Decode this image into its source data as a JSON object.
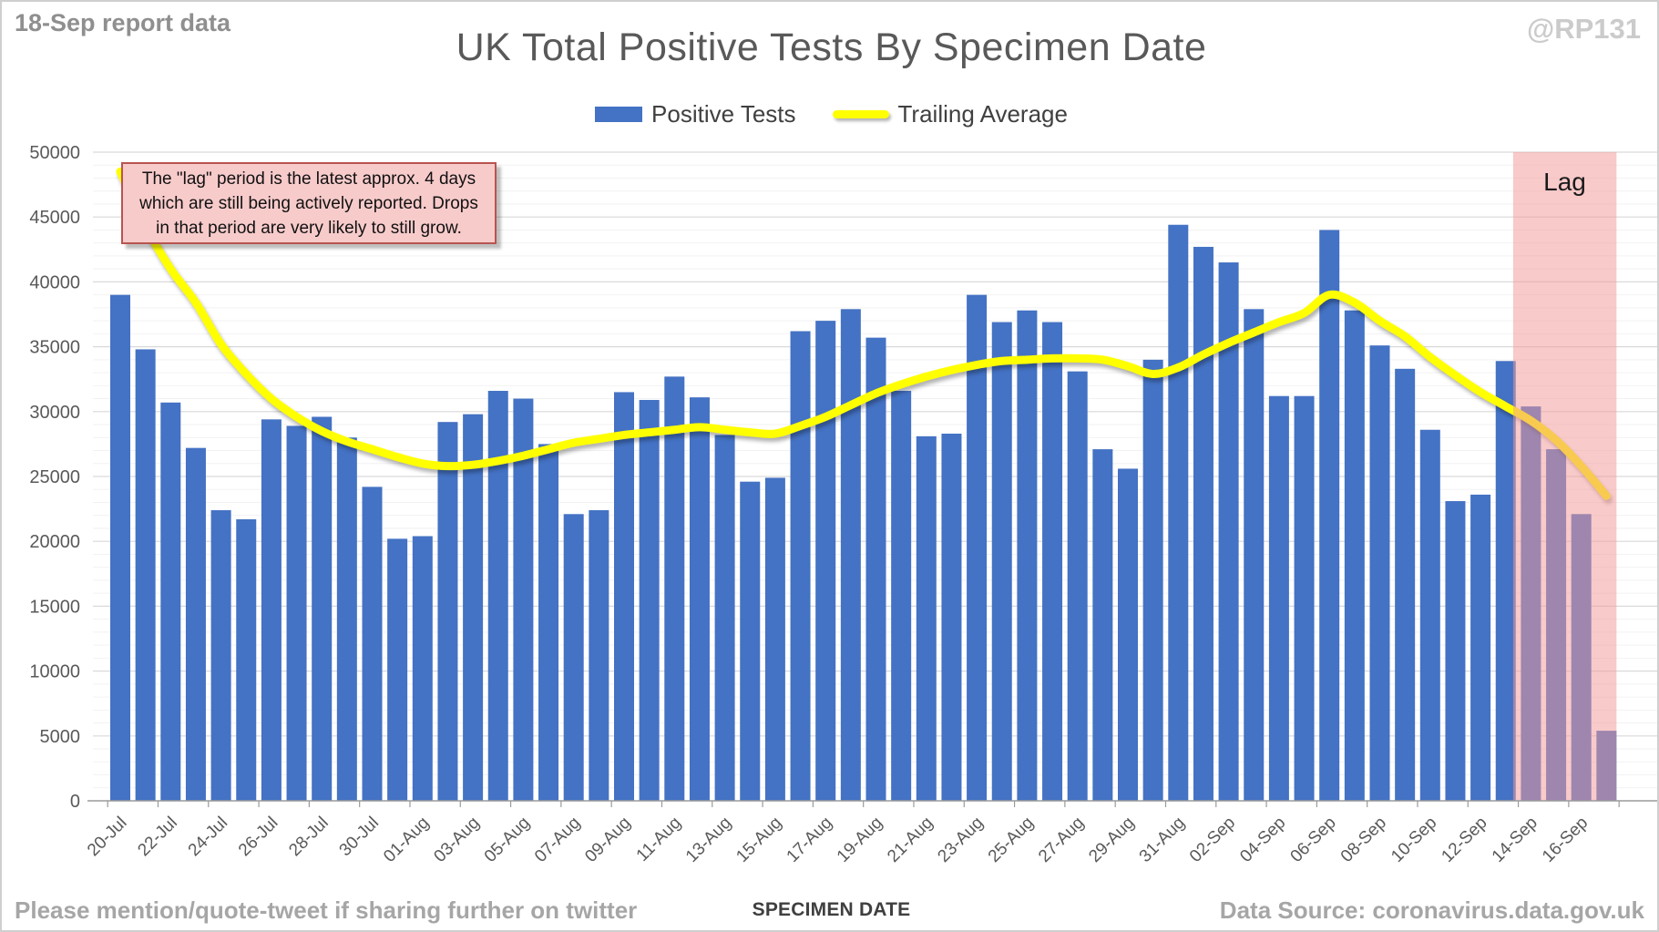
{
  "header": {
    "report_note": "18-Sep report data",
    "title": "UK Total Positive Tests By Specimen Date",
    "handle": "@RP131"
  },
  "legend": {
    "items": [
      {
        "label": "Positive Tests",
        "swatch": "bar",
        "color": "#4472C4"
      },
      {
        "label": "Trailing Average",
        "swatch": "line",
        "color": "#FFFF00"
      }
    ]
  },
  "annotation": {
    "line1": "The \"lag\" period is the latest approx. 4 days",
    "line2": "which are still being actively reported.  Drops",
    "line3": "in that period are very likely to still grow."
  },
  "lag": {
    "label": "Lag",
    "covers_days": 4,
    "from_category": "14-Sep"
  },
  "footer": {
    "left": "Please mention/quote-tweet if sharing further on twitter",
    "xaxis_title": "SPECIMEN DATE",
    "right": "Data Source: coronavirus.data.gov.uk"
  },
  "chart_data": {
    "type": "bar",
    "title": "UK Total Positive Tests By Specimen Date",
    "xlabel": "SPECIMEN DATE",
    "ylabel": "",
    "ylim": [
      0,
      50000
    ],
    "ytick_step": 5000,
    "minor_grid_step": 1000,
    "xtick_label_every": 2,
    "grid": true,
    "legend_position": "top-center",
    "categories": [
      "20-Jul",
      "21-Jul",
      "22-Jul",
      "23-Jul",
      "24-Jul",
      "25-Jul",
      "26-Jul",
      "27-Jul",
      "28-Jul",
      "29-Jul",
      "30-Jul",
      "31-Jul",
      "01-Aug",
      "02-Aug",
      "03-Aug",
      "04-Aug",
      "05-Aug",
      "06-Aug",
      "07-Aug",
      "08-Aug",
      "09-Aug",
      "10-Aug",
      "11-Aug",
      "12-Aug",
      "13-Aug",
      "14-Aug",
      "15-Aug",
      "16-Aug",
      "17-Aug",
      "18-Aug",
      "19-Aug",
      "20-Aug",
      "21-Aug",
      "22-Aug",
      "23-Aug",
      "24-Aug",
      "25-Aug",
      "26-Aug",
      "27-Aug",
      "28-Aug",
      "29-Aug",
      "30-Aug",
      "31-Aug",
      "01-Sep",
      "02-Sep",
      "03-Sep",
      "04-Sep",
      "05-Sep",
      "06-Sep",
      "07-Sep",
      "08-Sep",
      "09-Sep",
      "10-Sep",
      "11-Sep",
      "12-Sep",
      "13-Sep",
      "14-Sep",
      "15-Sep",
      "16-Sep",
      "17-Sep"
    ],
    "series": [
      {
        "name": "Positive Tests",
        "type": "bar",
        "color": "#4472C4",
        "values": [
          39000,
          34800,
          30700,
          27200,
          22400,
          21700,
          29400,
          28900,
          29600,
          28000,
          24200,
          20200,
          20400,
          29200,
          29800,
          31600,
          31000,
          27500,
          22100,
          22400,
          31500,
          30900,
          32700,
          31100,
          28200,
          24600,
          24900,
          36200,
          37000,
          37900,
          35700,
          31600,
          28100,
          28300,
          39000,
          36900,
          37800,
          36900,
          33100,
          27100,
          25600,
          34000,
          44400,
          42700,
          41500,
          37900,
          31200,
          31200,
          44000,
          37800,
          35100,
          33300,
          28600,
          23100,
          23600,
          33900,
          30400,
          27100,
          22100,
          5400
        ]
      },
      {
        "name": "Trailing Average",
        "type": "line",
        "color": "#FFFF00",
        "values": [
          48500,
          44300,
          41000,
          38400,
          35200,
          32900,
          31000,
          29600,
          28500,
          27700,
          27100,
          26500,
          26000,
          25800,
          25900,
          26200,
          26600,
          27100,
          27600,
          27900,
          28200,
          28400,
          28600,
          28800,
          28600,
          28400,
          28300,
          28900,
          29600,
          30500,
          31400,
          32100,
          32700,
          33200,
          33600,
          33900,
          34000,
          34100,
          34100,
          34000,
          33500,
          32900,
          33400,
          34400,
          35300,
          36100,
          36900,
          37600,
          39000,
          38400,
          37000,
          35800,
          34200,
          32800,
          31500,
          30400,
          29300,
          27800,
          25800,
          23500
        ]
      }
    ],
    "lag_region": {
      "categories": [
        "14-Sep",
        "15-Sep",
        "16-Sep",
        "17-Sep"
      ],
      "overlay_color": "rgba(242,153,153,0.52)"
    }
  }
}
